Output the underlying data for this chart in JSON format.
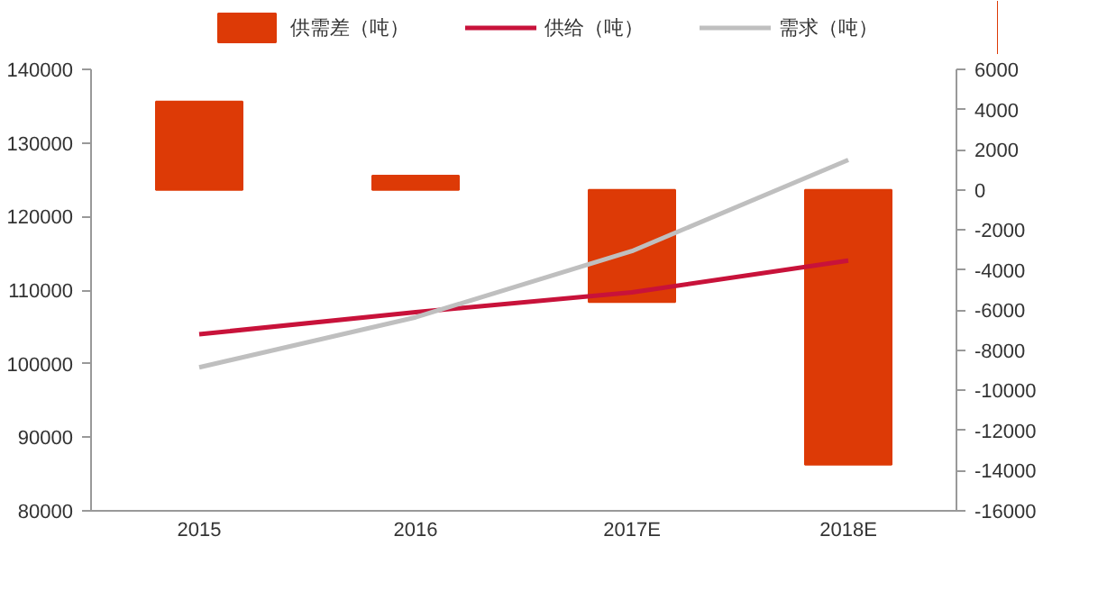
{
  "chart_data": {
    "type": "bar",
    "categories": [
      "2015",
      "2016",
      "2017E",
      "2018E"
    ],
    "series": [
      {
        "name": "供需差（吨）",
        "axis": "y2",
        "color": "#dd3a06",
        "values": [
          4400,
          700,
          -5600,
          -13700
        ]
      },
      {
        "name": "供给（吨）",
        "type": "line",
        "color": "#c8123a",
        "values": [
          104000,
          107000,
          109700,
          114000
        ]
      },
      {
        "name": "需求（吨）",
        "type": "line",
        "color": "#bfbfbf",
        "values": [
          99500,
          106300,
          115300,
          127700
        ]
      }
    ],
    "ylim": [
      80000,
      140000
    ],
    "yticks": [
      80000,
      90000,
      100000,
      110000,
      120000,
      130000,
      140000
    ],
    "y2lim": [
      -16000,
      6000
    ],
    "y2ticks": [
      -16000,
      -14000,
      -12000,
      -10000,
      -8000,
      -6000,
      -4000,
      -2000,
      0,
      2000,
      4000,
      6000
    ],
    "grid": false,
    "legend": "top"
  }
}
